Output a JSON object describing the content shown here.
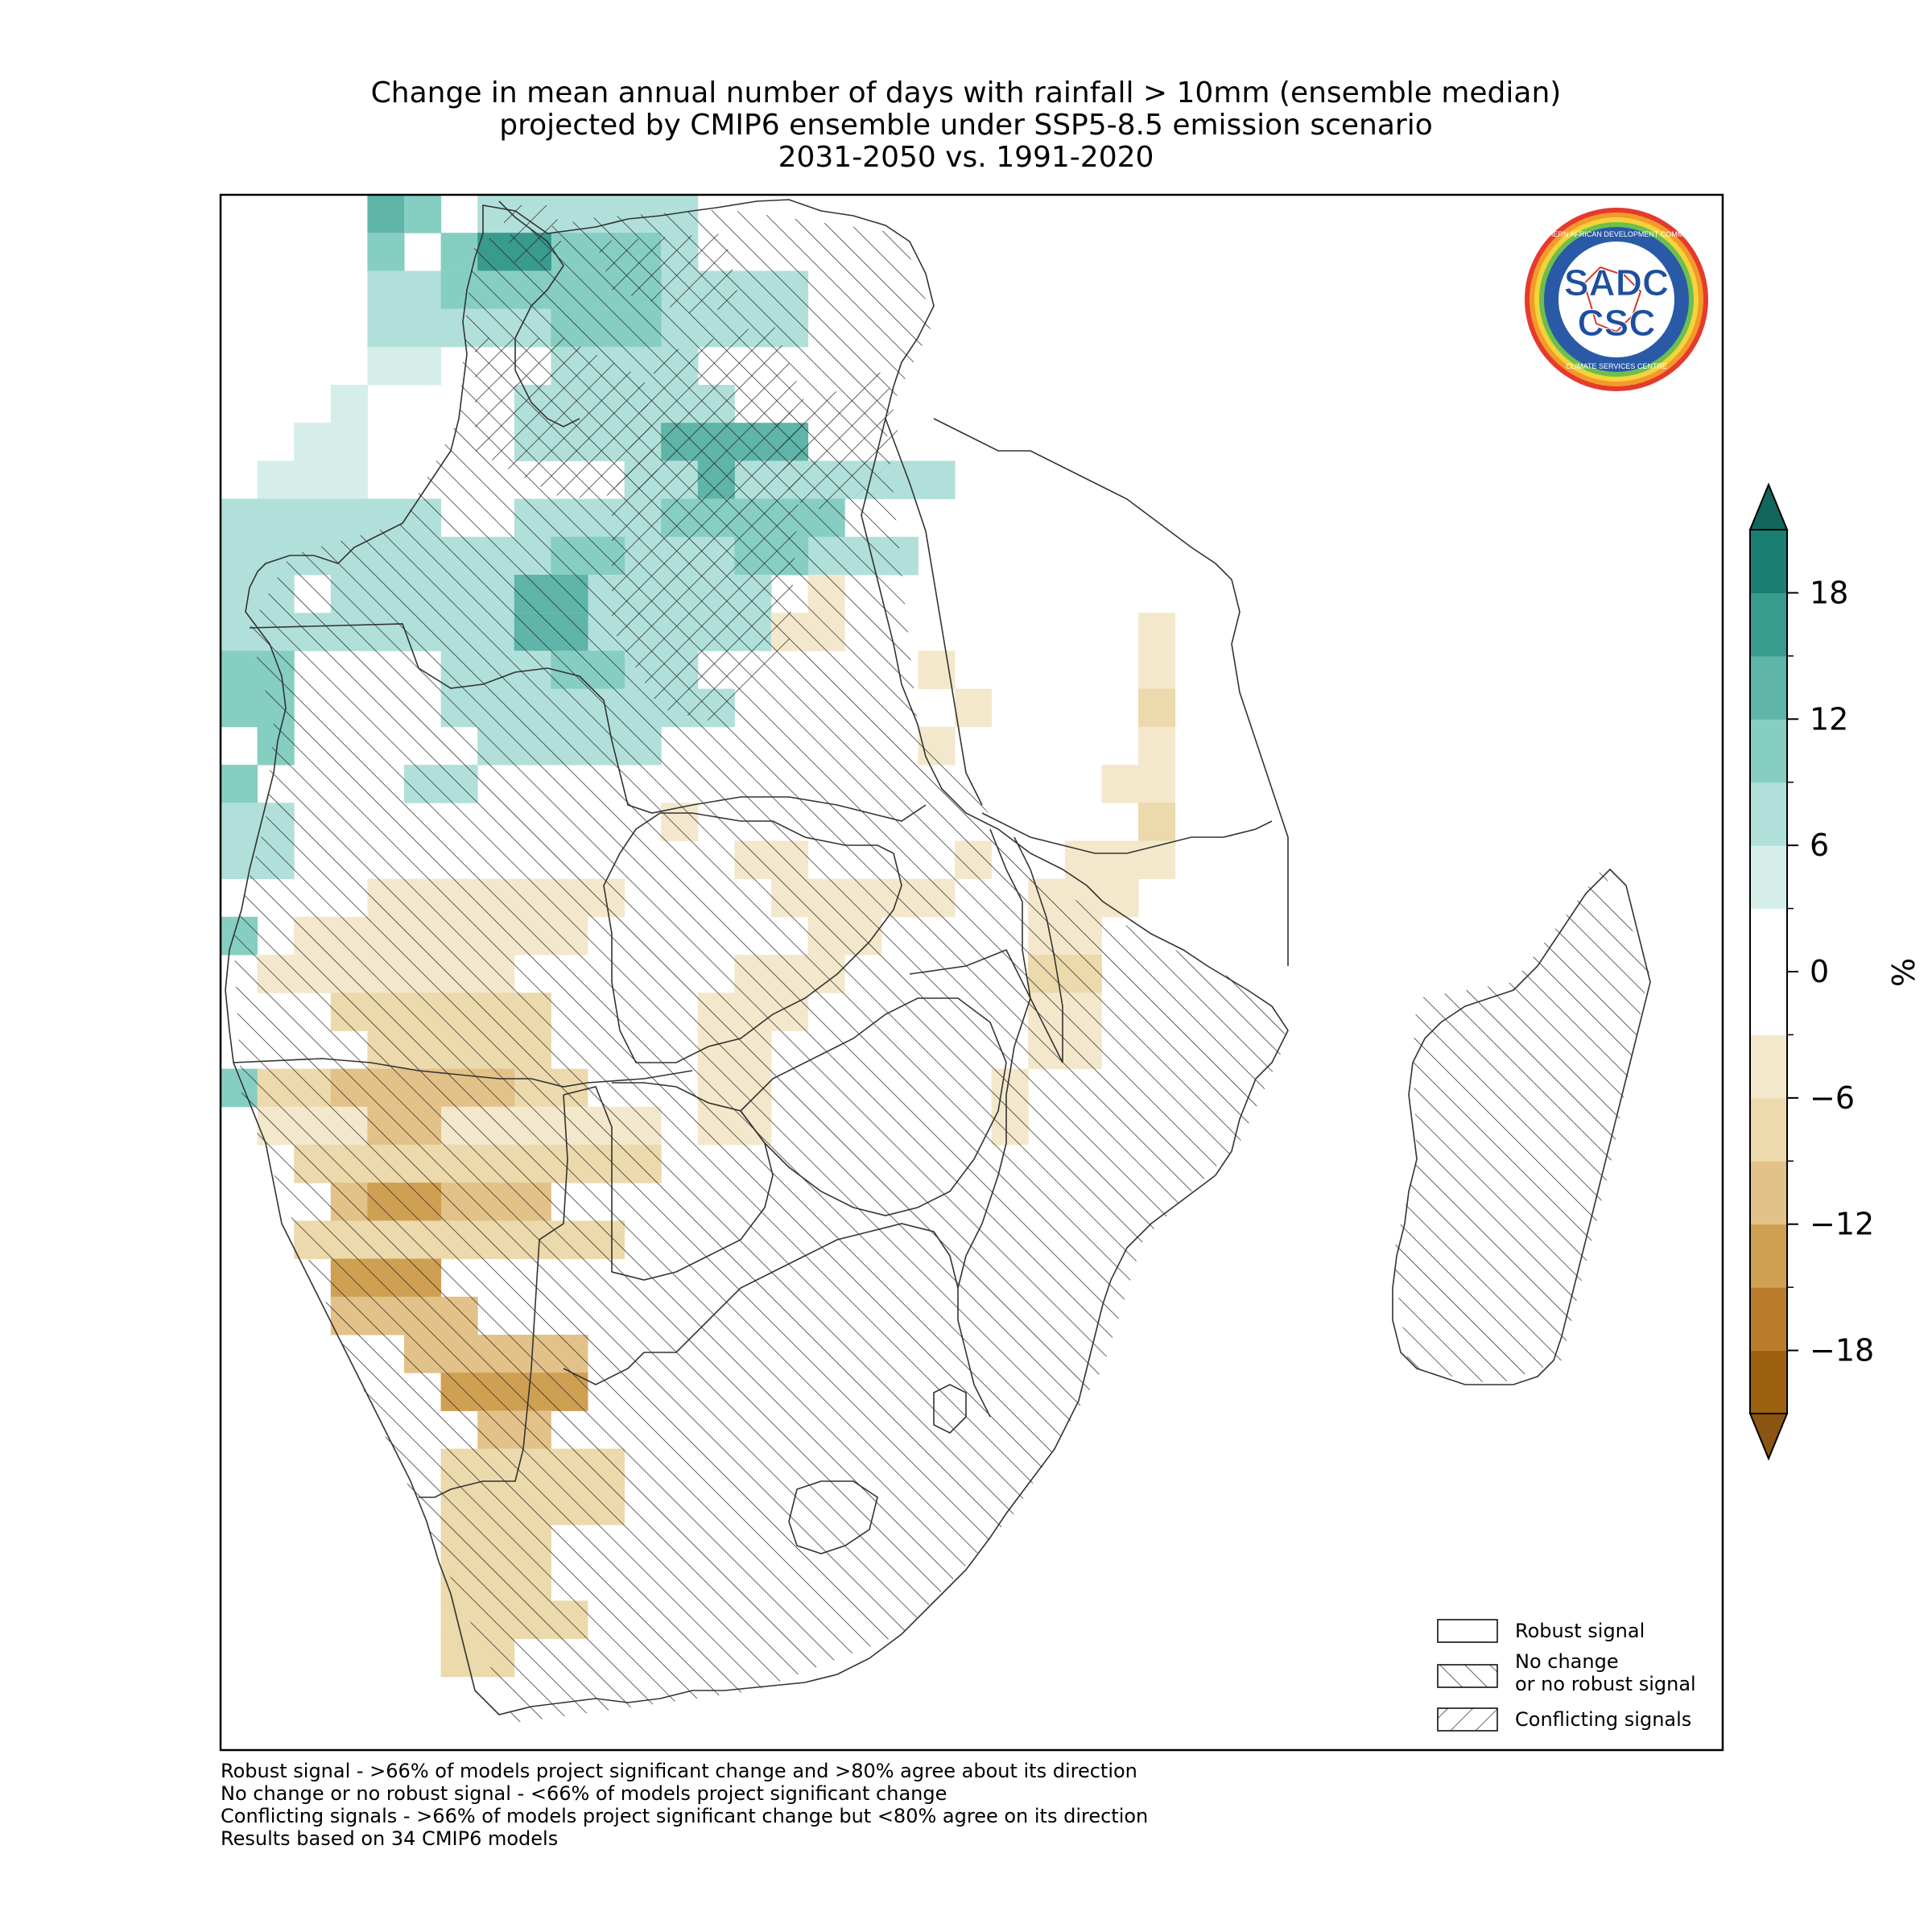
{
  "title": {
    "line1": "Change in mean annual number of days with rainfall > 10mm (ensemble median)",
    "line2": "projected by CMIP6 ensemble under SSP5-8.5 emission scenario",
    "line3": "2031-2050 vs. 1991-2020"
  },
  "logo": {
    "ring_text": "SOUTHERN AFRICAN DEVELOPMENT COMMUNITY",
    "ring_text_bottom": "CLIMATE SERVICES CENTRE",
    "mark_top": "SADC",
    "mark_bottom": "CSC"
  },
  "legend": {
    "robust": "Robust signal",
    "nochange_line1": "No change",
    "nochange_line2": "or no robust signal",
    "conflicting": "Conflicting signals"
  },
  "colorbar": {
    "unit": "%",
    "ticks": [
      "18",
      "12",
      "6",
      "0",
      "−6",
      "−12",
      "−18"
    ],
    "tick_values": [
      18,
      12,
      6,
      0,
      -6,
      -12,
      -18
    ],
    "bounds": [
      -21,
      21
    ],
    "step": 3,
    "colors_low_to_high": [
      "#9c6212",
      "#bb7d2c",
      "#cfa052",
      "#e2c288",
      "#ecd9ac",
      "#f4e8cc",
      "#ffffff",
      "#ffffff",
      "#d5eeea",
      "#b1e0da",
      "#86cec2",
      "#5eb5a8",
      "#399a8e",
      "#1b7e73"
    ],
    "extend_low_color": "#8a5510",
    "extend_high_color": "#12665c"
  },
  "footnotes": [
    "Robust signal - >66% of models project significant change and >80% agree about its direction",
    "No change or no robust signal - <66% of models project significant change",
    "Conflicting signals - >66% of models project significant change but <80% agree on its direction",
    "Results based on 34 CMIP6 models"
  ],
  "colors": {
    "frame": "#000000",
    "border": "#333333",
    "hatch": "#222222"
  }
}
